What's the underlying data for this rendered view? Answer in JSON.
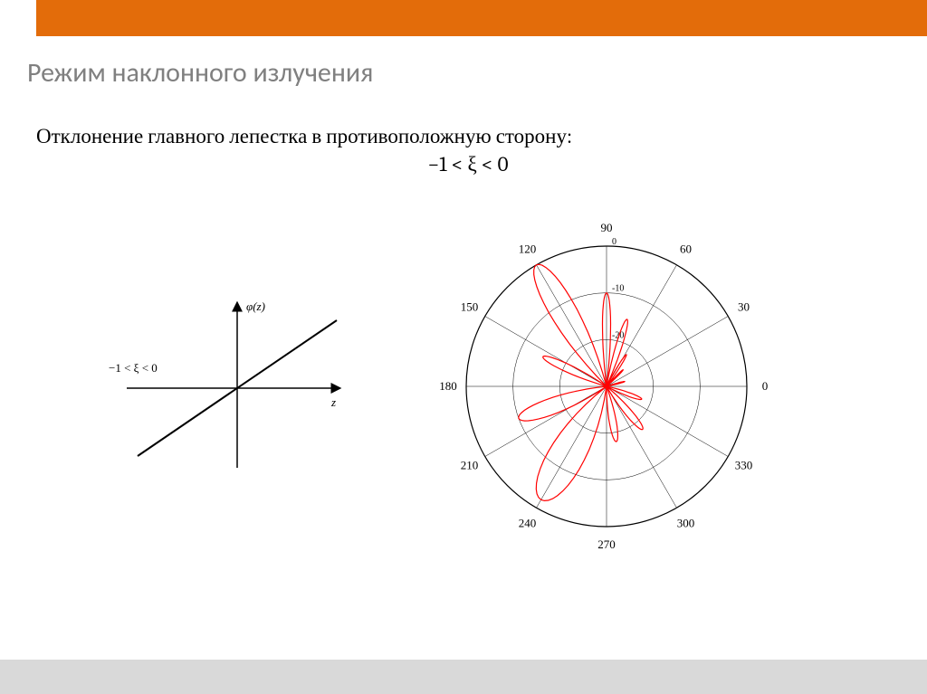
{
  "header": {
    "title": "Режим наклонного излучения",
    "top_bar_color": "#e36c0a",
    "title_color": "#808080",
    "title_fontsize": 30
  },
  "text": {
    "line1": "Отклонение главного лепестка в противоположную сторону:",
    "formula": "−1 < ξ < 0",
    "text_color": "#000000",
    "text_fontsize": 23
  },
  "phase_plot": {
    "type": "line",
    "y_label": "φ(z)",
    "x_label": "z",
    "annotation": "−1 < ξ < 0",
    "line_color": "#000000",
    "line_width": 2,
    "axis_color": "#000000",
    "data": {
      "x": [
        -1,
        1
      ],
      "y": [
        -0.75,
        0.75
      ]
    },
    "background_color": "#ffffff"
  },
  "polar_plot": {
    "type": "polar",
    "stroke_color": "#ff0000",
    "stroke_width": 1.2,
    "grid_color": "#000000",
    "axis_labels_deg": [
      0,
      30,
      60,
      90,
      120,
      150,
      180,
      210,
      240,
      270,
      300,
      330
    ],
    "radial_ticks_db": [
      0,
      -10,
      -20
    ],
    "r_outer_db": 0,
    "r_inner_db": -30,
    "background_color": "#ffffff",
    "lobes": [
      {
        "center_deg": 120,
        "halfwidth_deg": 15,
        "peak_db": 0
      },
      {
        "center_deg": 240,
        "halfwidth_deg": 22,
        "peak_db": -2
      },
      {
        "center_deg": 90,
        "halfwidth_deg": 7,
        "peak_db": -10
      },
      {
        "center_deg": 73,
        "halfwidth_deg": 7,
        "peak_db": -15
      },
      {
        "center_deg": 155,
        "halfwidth_deg": 9,
        "peak_db": -15
      },
      {
        "center_deg": 200,
        "halfwidth_deg": 14,
        "peak_db": -10
      },
      {
        "center_deg": 280,
        "halfwidth_deg": 10,
        "peak_db": -18
      },
      {
        "center_deg": 310,
        "halfwidth_deg": 10,
        "peak_db": -18
      },
      {
        "center_deg": 340,
        "halfwidth_deg": 8,
        "peak_db": -22
      },
      {
        "center_deg": 58,
        "halfwidth_deg": 5,
        "peak_db": -22
      },
      {
        "center_deg": 45,
        "halfwidth_deg": 4,
        "peak_db": -25
      },
      {
        "center_deg": 15,
        "halfwidth_deg": 4,
        "peak_db": -26
      }
    ]
  },
  "bottom_bar_color": "#d9d9d9"
}
